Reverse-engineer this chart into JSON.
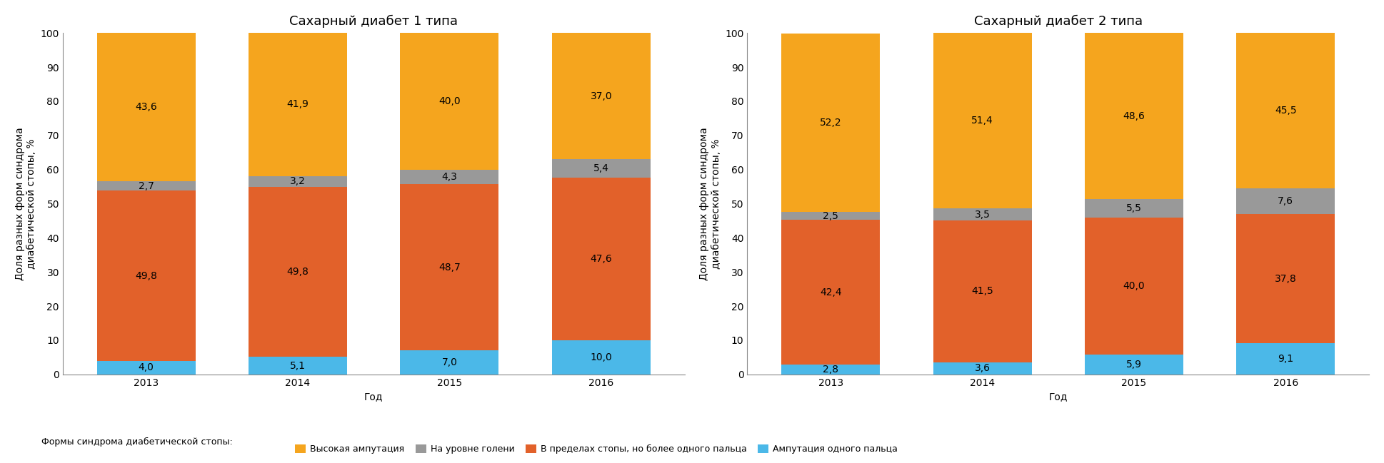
{
  "chart1": {
    "title": "Сахарный диабет 1 типа",
    "years": [
      "2013",
      "2014",
      "2015",
      "2016"
    ],
    "amputation_one_finger": [
      4.0,
      5.1,
      7.0,
      10.0
    ],
    "within_foot": [
      49.8,
      49.8,
      48.7,
      47.6
    ],
    "shin_level": [
      2.7,
      3.2,
      4.3,
      5.4
    ],
    "high_amputation": [
      43.6,
      41.9,
      40.0,
      37.0
    ]
  },
  "chart2": {
    "title": "Сахарный диабет 2 типа",
    "years": [
      "2013",
      "2014",
      "2015",
      "2016"
    ],
    "amputation_one_finger": [
      2.8,
      3.6,
      5.9,
      9.1
    ],
    "within_foot": [
      42.4,
      41.5,
      40.0,
      37.8
    ],
    "shin_level": [
      2.5,
      3.5,
      5.5,
      7.6
    ],
    "high_amputation": [
      52.2,
      51.4,
      48.6,
      45.5
    ]
  },
  "colors": {
    "high_amputation": "#F5A51E",
    "shin_level": "#999999",
    "within_foot": "#E2612A",
    "amputation_one_finger": "#4BB8E8"
  },
  "ylabel": "Доля разных форм синдрома\nдиабетической стопы, %",
  "xlabel": "Год",
  "legend_prefix": "Формы синдрома диабетической стопы:",
  "legend_items": [
    {
      "label": "Высокая ампутация",
      "color": "#F5A51E"
    },
    {
      "label": "На уровне голени",
      "color": "#999999"
    },
    {
      "label": "В пределах стопы, но более одного пальца",
      "color": "#E2612A"
    },
    {
      "label": "Ампутация одного пальца",
      "color": "#4BB8E8"
    }
  ],
  "ylim": [
    0,
    100
  ],
  "yticks": [
    0,
    10,
    20,
    30,
    40,
    50,
    60,
    70,
    80,
    90,
    100
  ],
  "bar_width": 0.65,
  "title_fontsize": 13,
  "label_fontsize": 10,
  "tick_fontsize": 10,
  "value_fontsize": 10,
  "background_color": "#FFFFFF"
}
